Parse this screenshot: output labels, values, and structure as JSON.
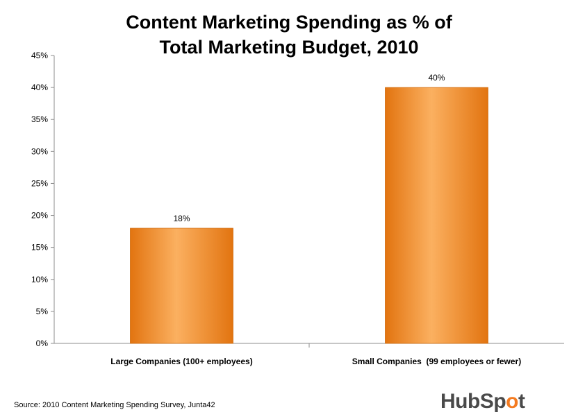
{
  "chart_data": {
    "type": "bar",
    "title_lines": [
      "Content Marketing Spending as % of",
      "Total Marketing Budget, 2010"
    ],
    "categories": [
      "Large Companies (100+ employees)",
      "Small Companies  (99 employees or fewer)"
    ],
    "values": [
      18,
      40
    ],
    "data_labels": [
      "18%",
      "40%"
    ],
    "ylim": [
      0,
      45
    ],
    "yticks": [
      "0%",
      "5%",
      "10%",
      "15%",
      "20%",
      "25%",
      "30%",
      "35%",
      "40%",
      "45%"
    ],
    "grid": false,
    "bar_color": "#f7941d"
  },
  "source": "Source: 2010 Content Marketing Spending Survey, Junta42",
  "logo": {
    "text_main": "HubSp",
    "text_accent": "o",
    "text_end": "t"
  }
}
